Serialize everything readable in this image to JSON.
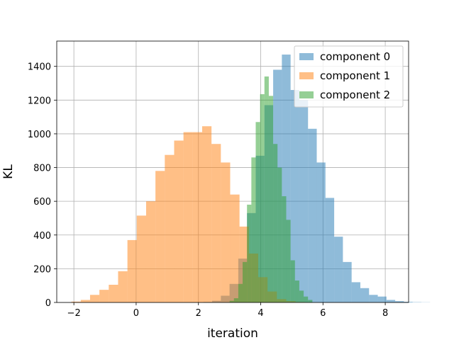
{
  "chart_data": {
    "type": "bar",
    "title": "",
    "xlabel": "iteration",
    "ylabel": "KL",
    "xlim": [
      -2.55,
      8.75
    ],
    "ylim": [
      0,
      1550
    ],
    "xticks": [
      -2,
      0,
      2,
      4,
      6,
      8
    ],
    "yticks": [
      0,
      200,
      400,
      600,
      800,
      1000,
      1200,
      1400
    ],
    "grid": true,
    "legend_position": "top-right",
    "bar_alpha": 0.5,
    "series": [
      {
        "name": "component 0",
        "color": "#1f77b4",
        "bin_start": 2.16,
        "bin_width": 0.28,
        "counts": [
          3,
          10,
          40,
          110,
          260,
          530,
          870,
          1170,
          1380,
          1470,
          1260,
          1200,
          1030,
          830,
          620,
          390,
          240,
          120,
          85,
          45,
          35,
          15,
          8,
          4,
          2,
          1
        ]
      },
      {
        "name": "component 1",
        "color": "#ff7f0e",
        "bin_start": -2.08,
        "bin_width": 0.3,
        "counts": [
          5,
          15,
          45,
          75,
          105,
          185,
          370,
          515,
          600,
          780,
          875,
          960,
          1010,
          1010,
          1045,
          940,
          830,
          640,
          450,
          290,
          150,
          65,
          20,
          8,
          3
        ]
      },
      {
        "name": "component 2",
        "color": "#2ca02c",
        "bin_start": 3.0,
        "bin_width": 0.14,
        "counts": [
          10,
          25,
          110,
          240,
          580,
          860,
          1070,
          1235,
          1340,
          1225,
          940,
          800,
          630,
          490,
          250,
          130,
          70,
          35,
          15
        ]
      }
    ]
  }
}
